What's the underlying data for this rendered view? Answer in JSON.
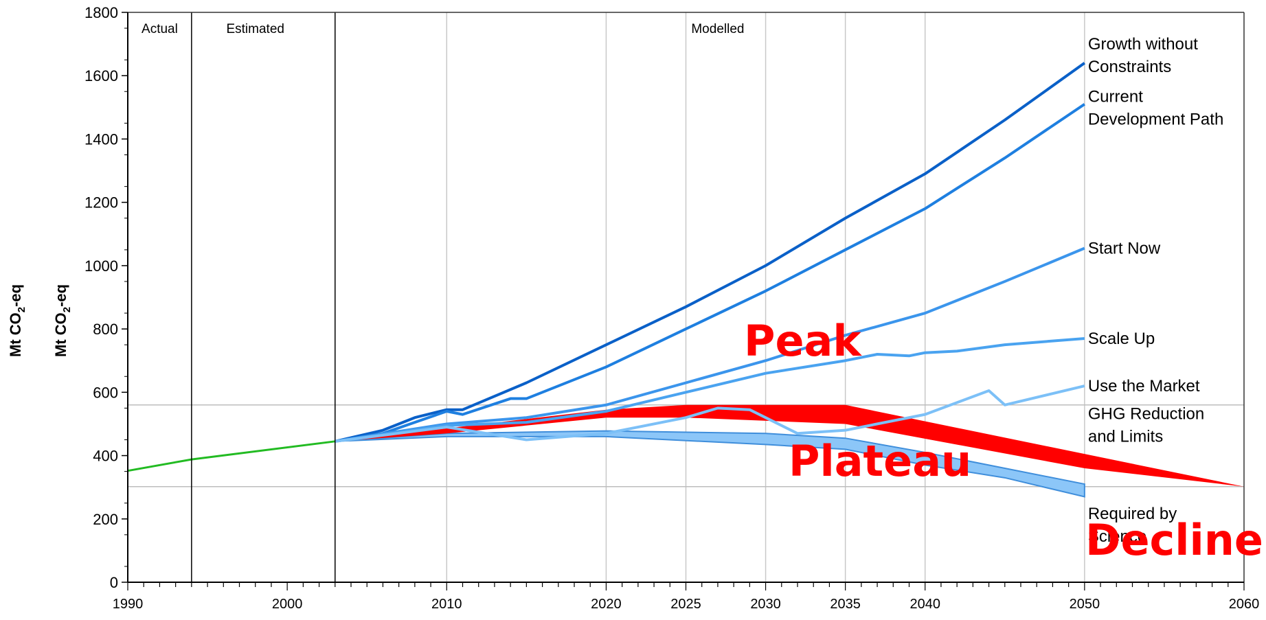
{
  "chart_data": {
    "type": "line",
    "title": "",
    "ylabel": "Mt CO2-eq",
    "ylabel_parts": {
      "prefix": "Mt CO",
      "sub": "2",
      "suffix": "-eq"
    },
    "xlim": [
      1990,
      2060
    ],
    "ylim": [
      0,
      1800
    ],
    "yticks": [
      0,
      200,
      400,
      600,
      800,
      1000,
      1200,
      1400,
      1600,
      1800
    ],
    "xticks": [
      1990,
      2000,
      2010,
      2020,
      2025,
      2030,
      2035,
      2040,
      2050,
      2060
    ],
    "grid": true,
    "regions": [
      {
        "label": "Actual",
        "x": 1992
      },
      {
        "label": "Estimated",
        "x": 1998
      },
      {
        "label": "Modelled",
        "x": 2027
      }
    ],
    "dividers": [
      1994,
      2003
    ],
    "historical": {
      "name": "",
      "color": "#22bb22",
      "x": [
        1990,
        1994,
        2003
      ],
      "y": [
        352,
        388,
        445
      ]
    },
    "series": [
      {
        "name": "Growth without Constraints",
        "color": "#0a60c8",
        "x": [
          2003,
          2006,
          2008,
          2010,
          2011,
          2015,
          2020,
          2025,
          2030,
          2035,
          2040,
          2045,
          2050
        ],
        "y": [
          445,
          480,
          520,
          545,
          545,
          630,
          750,
          870,
          1000,
          1150,
          1290,
          1460,
          1640
        ]
      },
      {
        "name": "Current Development Path",
        "color": "#1e7fe0",
        "x": [
          2003,
          2006,
          2008,
          2010,
          2011,
          2014,
          2015,
          2020,
          2025,
          2030,
          2035,
          2040,
          2045,
          2050
        ],
        "y": [
          445,
          470,
          505,
          540,
          530,
          580,
          580,
          680,
          800,
          920,
          1050,
          1180,
          1340,
          1510
        ]
      },
      {
        "name": "Start Now",
        "color": "#3b95ec",
        "x": [
          2003,
          2010,
          2015,
          2020,
          2025,
          2030,
          2035,
          2040,
          2045,
          2050
        ],
        "y": [
          445,
          500,
          520,
          560,
          630,
          700,
          780,
          850,
          950,
          1055
        ]
      },
      {
        "name": "Scale Up",
        "color": "#4aa3f0",
        "x": [
          2003,
          2010,
          2015,
          2020,
          2025,
          2030,
          2035,
          2037,
          2039,
          2040,
          2042,
          2045,
          2050
        ],
        "y": [
          445,
          495,
          505,
          540,
          600,
          660,
          700,
          720,
          715,
          725,
          730,
          750,
          770
        ]
      },
      {
        "name": "Use the Market",
        "color": "#7cc0f7",
        "x": [
          2003,
          2010,
          2015,
          2020,
          2025,
          2027,
          2029,
          2032,
          2035,
          2040,
          2044,
          2045,
          2050
        ],
        "y": [
          445,
          490,
          450,
          470,
          520,
          550,
          545,
          470,
          480,
          530,
          605,
          560,
          620
        ]
      },
      {
        "name": "Required by Science",
        "color": "#4a90d9",
        "x": [
          2003,
          2010,
          2020,
          2030,
          2035,
          2040,
          2045,
          2050
        ],
        "y": [
          445,
          470,
          470,
          450,
          430,
          380,
          340,
          290
        ]
      }
    ],
    "science_band": {
      "upper": [
        [
          2003,
          445
        ],
        [
          2010,
          470
        ],
        [
          2020,
          478
        ],
        [
          2030,
          470
        ],
        [
          2035,
          455
        ],
        [
          2040,
          410
        ],
        [
          2045,
          360
        ],
        [
          2050,
          310
        ]
      ],
      "lower": [
        [
          2003,
          445
        ],
        [
          2010,
          460
        ],
        [
          2020,
          460
        ],
        [
          2030,
          435
        ],
        [
          2035,
          420
        ],
        [
          2040,
          370
        ],
        [
          2045,
          330
        ],
        [
          2050,
          270
        ]
      ]
    },
    "ghg_band": {
      "name": "GHG Reduction and Limits",
      "color": "#ff0000",
      "polygon": [
        [
          2003,
          445
        ],
        [
          2020,
          545
        ],
        [
          2025,
          560
        ],
        [
          2035,
          560
        ],
        [
          2060,
          302
        ],
        [
          2050,
          360
        ],
        [
          2035,
          500
        ],
        [
          2025,
          520
        ],
        [
          2020,
          520
        ],
        [
          2010,
          470
        ]
      ]
    },
    "reference_lines": [
      560,
      302
    ],
    "series_labels": {
      "growth": [
        "Growth without",
        "Constraints"
      ],
      "current": [
        "Current",
        "Development Path"
      ],
      "start": [
        "Start Now"
      ],
      "scale": [
        "Scale Up"
      ],
      "market": [
        "Use the Market"
      ],
      "ghg": [
        "GHG Reduction",
        "and Limits"
      ],
      "science": [
        "Required by",
        "Science"
      ]
    },
    "annotations": {
      "peak": "Peak",
      "plateau": "Plateau",
      "decline": "Decline"
    }
  }
}
